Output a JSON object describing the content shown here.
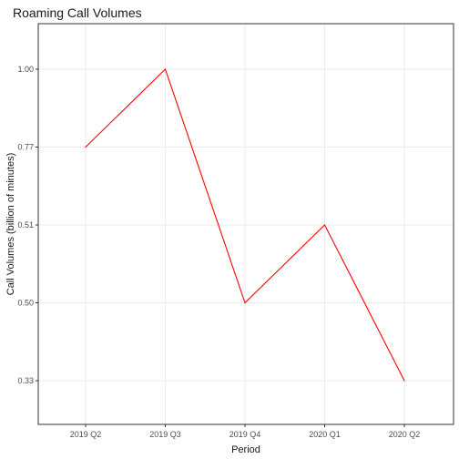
{
  "chart_data": {
    "type": "line",
    "title": "Roaming Call Volumes",
    "xlabel": "Period",
    "ylabel": "Call Volumes (billion of minutes)",
    "categories": [
      "2019 Q2",
      "2019 Q3",
      "2019 Q4",
      "2020 Q1",
      "2020 Q2"
    ],
    "series": [
      {
        "values": [
          0.77,
          1.0,
          0.5,
          0.51,
          0.33
        ],
        "color": "#ff0000"
      }
    ],
    "y_ticks": [
      "0.33",
      "0.50",
      "0.51",
      "0.77",
      "1.00"
    ],
    "grid": true,
    "legend": "none"
  }
}
